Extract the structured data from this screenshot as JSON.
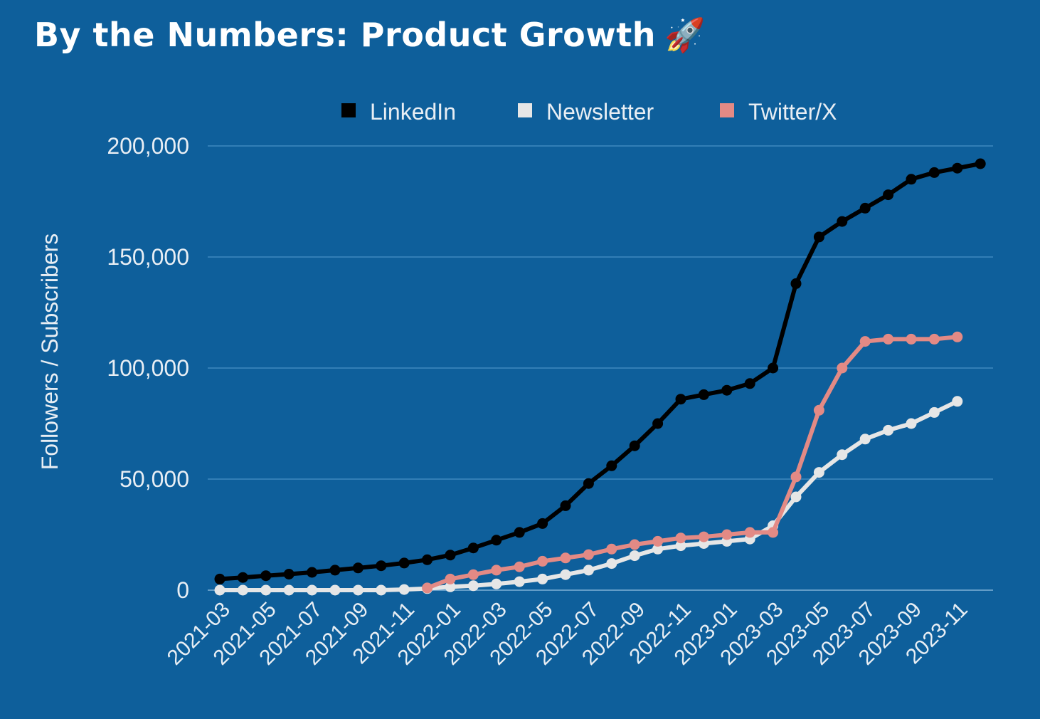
{
  "title": "By the Numbers: Product Growth",
  "title_emoji": "🚀",
  "colors": {
    "background": "#0e5f9b",
    "gridline": "#3f88c0",
    "text": "#e8eef4",
    "title": "#ffffff"
  },
  "chart_data": {
    "type": "line",
    "title": "By the Numbers: Product Growth",
    "xlabel": "",
    "ylabel": "Followers / Subscribers",
    "ylim": [
      0,
      200000
    ],
    "yticks": [
      0,
      50000,
      100000,
      150000,
      200000
    ],
    "ytick_labels": [
      "0",
      "50,000",
      "100,000",
      "150,000",
      "200,000"
    ],
    "xlim": [
      "2021-03",
      "2023-12"
    ],
    "xtick_labels": [
      "2021-03",
      "2021-05",
      "2021-07",
      "2021-09",
      "2021-11",
      "2022-01",
      "2022-03",
      "2022-05",
      "2022-07",
      "2022-09",
      "2022-11",
      "2023-01",
      "2023-03",
      "2023-05",
      "2023-07",
      "2023-09",
      "2023-11"
    ],
    "grid": "horizontal",
    "legend_position": "top",
    "series": [
      {
        "name": "LinkedIn",
        "color": "#000000",
        "x": [
          "2021-03",
          "2021-04",
          "2021-05",
          "2021-06",
          "2021-07",
          "2021-08",
          "2021-09",
          "2021-10",
          "2021-11",
          "2021-12",
          "2022-01",
          "2022-02",
          "2022-03",
          "2022-04",
          "2022-05",
          "2022-06",
          "2022-07",
          "2022-08",
          "2022-09",
          "2022-10",
          "2022-11",
          "2022-12",
          "2023-01",
          "2023-02",
          "2023-03",
          "2023-04",
          "2023-05",
          "2023-06",
          "2023-07",
          "2023-08",
          "2023-09",
          "2023-10",
          "2023-11",
          "2023-12"
        ],
        "values": [
          5000,
          5700,
          6500,
          7200,
          8000,
          9000,
          10000,
          11000,
          12200,
          13700,
          15800,
          19000,
          22500,
          26000,
          30000,
          38000,
          48000,
          56000,
          65000,
          75000,
          86000,
          88000,
          90000,
          93000,
          100000,
          138000,
          159000,
          166000,
          172000,
          178000,
          185000,
          188000,
          190000,
          192000
        ]
      },
      {
        "name": "Newsletter",
        "color": "#e6e6e6",
        "x": [
          "2021-03",
          "2021-04",
          "2021-05",
          "2021-06",
          "2021-07",
          "2021-08",
          "2021-09",
          "2021-10",
          "2021-11",
          "2021-12",
          "2022-01",
          "2022-02",
          "2022-03",
          "2022-04",
          "2022-05",
          "2022-06",
          "2022-07",
          "2022-08",
          "2022-09",
          "2022-10",
          "2022-11",
          "2022-12",
          "2023-01",
          "2023-02",
          "2023-03",
          "2023-04",
          "2023-05",
          "2023-06",
          "2023-07",
          "2023-08",
          "2023-09",
          "2023-10",
          "2023-11"
        ],
        "values": [
          0,
          0,
          0,
          0,
          0,
          0,
          0,
          0,
          300,
          700,
          1500,
          2000,
          2800,
          3800,
          5000,
          7000,
          9000,
          12000,
          15500,
          18500,
          20000,
          21000,
          22000,
          23000,
          29000,
          42000,
          53000,
          61000,
          68000,
          72000,
          75000,
          80000,
          85000
        ]
      },
      {
        "name": "Twitter/X",
        "color": "#e38a85",
        "x": [
          "2021-12",
          "2022-01",
          "2022-02",
          "2022-03",
          "2022-04",
          "2022-05",
          "2022-06",
          "2022-07",
          "2022-08",
          "2022-09",
          "2022-10",
          "2022-11",
          "2022-12",
          "2023-01",
          "2023-02",
          "2023-03",
          "2023-04",
          "2023-05",
          "2023-06",
          "2023-07",
          "2023-08",
          "2023-09",
          "2023-10",
          "2023-11"
        ],
        "values": [
          1000,
          5000,
          7000,
          9000,
          10500,
          13000,
          14500,
          16000,
          18500,
          20500,
          22000,
          23500,
          24000,
          25000,
          26000,
          26000,
          51000,
          81000,
          100000,
          112000,
          113000,
          113000,
          113000,
          114000
        ]
      }
    ]
  }
}
